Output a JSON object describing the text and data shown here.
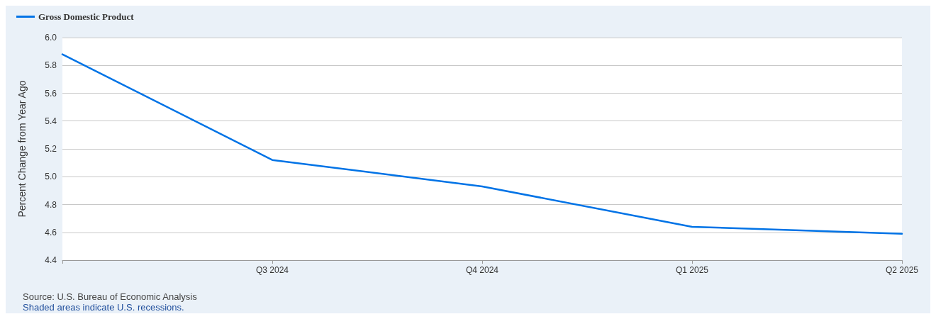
{
  "chart_data": {
    "type": "line",
    "ylabel": "Percent Change from Year Ago",
    "categories": [
      null,
      "Q3 2024",
      "Q4 2024",
      "Q1 2025",
      "Q2 2025"
    ],
    "series": [
      {
        "name": "Gross Domestic Product",
        "color": "#0073e6",
        "values": [
          5.88,
          5.12,
          4.93,
          4.64,
          4.59
        ]
      }
    ],
    "ylim": [
      4.4,
      6.0
    ],
    "yticks": [
      4.4,
      4.6,
      4.8,
      {
        "value": 5,
        "label": "5.0"
      },
      5.2,
      5.4,
      5.6,
      5.8,
      {
        "value": 6,
        "label": "6.0"
      }
    ],
    "grid": "y",
    "legend": "top left",
    "marker": "none",
    "line_style": "solid",
    "annotations": [
      "Source: U.S. Bureau of Economic Analysis",
      "Shaded areas indicate U.S. recessions."
    ]
  }
}
